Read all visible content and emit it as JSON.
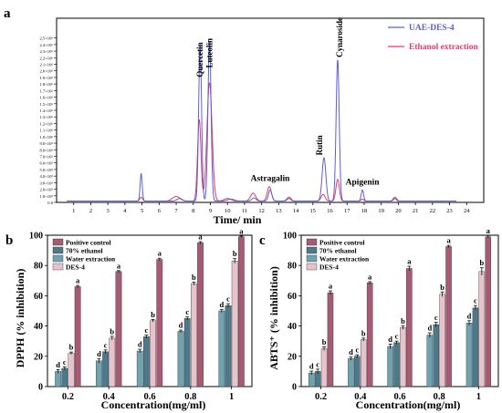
{
  "chart_data": [
    {
      "panel_label": "a",
      "type": "line",
      "xlabel": "Time/ min",
      "ylabel": "",
      "xlim": [
        0,
        25
      ],
      "ylim": [
        0,
        2.8
      ],
      "x_ticks": [
        "1",
        "2",
        "3",
        "4",
        "5",
        "6",
        "7",
        "8",
        "9",
        "10",
        "11",
        "12",
        "13",
        "14",
        "15",
        "16",
        "17",
        "18",
        "19",
        "20",
        "21",
        "22",
        "23",
        "24"
      ],
      "y_ticks": [
        "0.0",
        "1.0×10⁵",
        "2.0×10⁵",
        "3.0×10⁵",
        "4.0×10⁵",
        "5.0×10⁵",
        "6.0×10⁵",
        "7.0×10⁵",
        "8.0×10⁵",
        "9.0×10⁵",
        "1.0×10⁶",
        "1.1×10⁶",
        "1.2×10⁶",
        "1.3×10⁶",
        "1.4×10⁶",
        "1.5×10⁶",
        "1.6×10⁶",
        "1.7×10⁶",
        "1.8×10⁶",
        "1.9×10⁶",
        "2.0×10⁶",
        "2.1×10⁶",
        "2.2×10⁶",
        "2.3×10⁶",
        "2.4×10⁶",
        "2.5×10⁶"
      ],
      "y_unit_scale": 1000000,
      "legend_position": "top-right",
      "series": [
        {
          "name": "UAE-DES-4",
          "color": "#5a5fd6",
          "baseline": 0.02,
          "peaks": [
            [
              4.95,
              0.42,
              0.06
            ],
            [
              7.2,
              0.04,
              0.15
            ],
            [
              8.4,
              2.38,
              0.085
            ],
            [
              8.95,
              2.44,
              0.09
            ],
            [
              10.2,
              0.03,
              0.2
            ],
            [
              11.55,
              0.05,
              0.12
            ],
            [
              12.5,
              0.17,
              0.1
            ],
            [
              13.6,
              0.04,
              0.1
            ],
            [
              15.65,
              0.66,
              0.11
            ],
            [
              16.45,
              2.15,
              0.09
            ],
            [
              17.9,
              0.17,
              0.07
            ],
            [
              19.8,
              0.04,
              0.08
            ]
          ]
        },
        {
          "name": "Ethanol extraction",
          "color": "#e23b6a",
          "baseline": 0.02,
          "peaks": [
            [
              4.95,
              0.06,
              0.08
            ],
            [
              7.0,
              0.07,
              0.22
            ],
            [
              8.35,
              1.24,
              0.1
            ],
            [
              8.95,
              1.8,
              0.15
            ],
            [
              10.0,
              0.04,
              0.2
            ],
            [
              11.5,
              0.12,
              0.15
            ],
            [
              12.45,
              0.22,
              0.12
            ],
            [
              13.6,
              0.06,
              0.12
            ],
            [
              15.6,
              0.1,
              0.12
            ],
            [
              16.45,
              0.33,
              0.1
            ],
            [
              17.9,
              0.03,
              0.08
            ],
            [
              19.8,
              0.06,
              0.1
            ]
          ]
        }
      ],
      "annotations": [
        {
          "text": "Quercetin",
          "x": 8.4,
          "y": 2.38
        },
        {
          "text": "Luteolin",
          "x": 8.95,
          "y": 2.44
        },
        {
          "text": "Astragalin",
          "x": 12.5,
          "y": 0.24
        },
        {
          "text": "Rutin",
          "x": 15.65,
          "y": 0.66
        },
        {
          "text": "Cynaroside",
          "x": 16.45,
          "y": 2.15
        },
        {
          "text": "Apigenin",
          "x": 17.9,
          "y": 0.19
        }
      ]
    },
    {
      "panel_label": "b",
      "type": "bar",
      "xlabel": "Concentration(mg/ml)",
      "ylabel": "DPPH (% inhibition)",
      "ylim": [
        0,
        100
      ],
      "y_ticks": [
        0,
        20,
        40,
        60,
        80,
        100
      ],
      "categories": [
        "0.2",
        "0.4",
        "0.6",
        "0.8",
        "1"
      ],
      "legend_position": "top-left",
      "series": [
        {
          "name": "Water extraction",
          "color": "#6fa3b2",
          "values": [
            10,
            17,
            23.5,
            36.5,
            50
          ],
          "errors": [
            1.2,
            1.5,
            1.2,
            0.8,
            1.0
          ],
          "letters": [
            "d",
            "d",
            "d",
            "d",
            "d"
          ]
        },
        {
          "name": "70% ethanol",
          "color": "#4d7a8a",
          "values": [
            12,
            23,
            33,
            45,
            53.5
          ],
          "errors": [
            1.0,
            1.2,
            1.0,
            1.0,
            1.2
          ],
          "letters": [
            "c",
            "c",
            "c",
            "c",
            "c"
          ]
        },
        {
          "name": "DES-4",
          "color": "#e8c3cb",
          "values": [
            22,
            32,
            43.5,
            68,
            83
          ],
          "errors": [
            0.8,
            1.2,
            0.8,
            1.0,
            1.5
          ],
          "letters": [
            "b",
            "b",
            "b",
            "b",
            "b"
          ]
        },
        {
          "name": "Positive control",
          "color": "#a65a74",
          "values": [
            66,
            76,
            84,
            95,
            99
          ],
          "errors": [
            0.8,
            0.6,
            0.8,
            0.8,
            0.5
          ],
          "letters": [
            "a",
            "a",
            "a",
            "a",
            "a"
          ]
        }
      ]
    },
    {
      "panel_label": "c",
      "type": "bar",
      "xlabel": "Concentration(mg/ml)",
      "ylabel": "ABTS⁺ (% inhibition)",
      "ylim": [
        0,
        100
      ],
      "y_ticks": [
        0,
        20,
        40,
        60,
        80,
        100
      ],
      "categories": [
        "0.2",
        "0.4",
        "0.6",
        "0.8",
        "1"
      ],
      "legend_position": "top-left",
      "series": [
        {
          "name": "Water extraction",
          "color": "#6fa3b2",
          "values": [
            9,
            18.5,
            26.5,
            34,
            42
          ],
          "errors": [
            1.2,
            1.0,
            1.5,
            1.5,
            1.5
          ],
          "letters": [
            "d",
            "d",
            "d",
            "d",
            "d"
          ]
        },
        {
          "name": "70% ethanol",
          "color": "#4d7a8a",
          "values": [
            10,
            20,
            29,
            41,
            52
          ],
          "errors": [
            1.5,
            1.0,
            1.0,
            1.5,
            1.5
          ],
          "letters": [
            "c",
            "c",
            "c",
            "c",
            "c"
          ]
        },
        {
          "name": "DES-4",
          "color": "#e8c3cb",
          "values": [
            25,
            31,
            39,
            61,
            76
          ],
          "errors": [
            1.2,
            1.0,
            1.2,
            1.5,
            2.5
          ],
          "letters": [
            "b",
            "b",
            "b",
            "b",
            "b"
          ]
        },
        {
          "name": "Positive control",
          "color": "#a65a74",
          "values": [
            62,
            68.5,
            78,
            92.5,
            99
          ],
          "errors": [
            1.2,
            0.8,
            1.5,
            0.8,
            0.8
          ],
          "letters": [
            "a",
            "a",
            "a",
            "a",
            "a"
          ]
        }
      ]
    }
  ]
}
